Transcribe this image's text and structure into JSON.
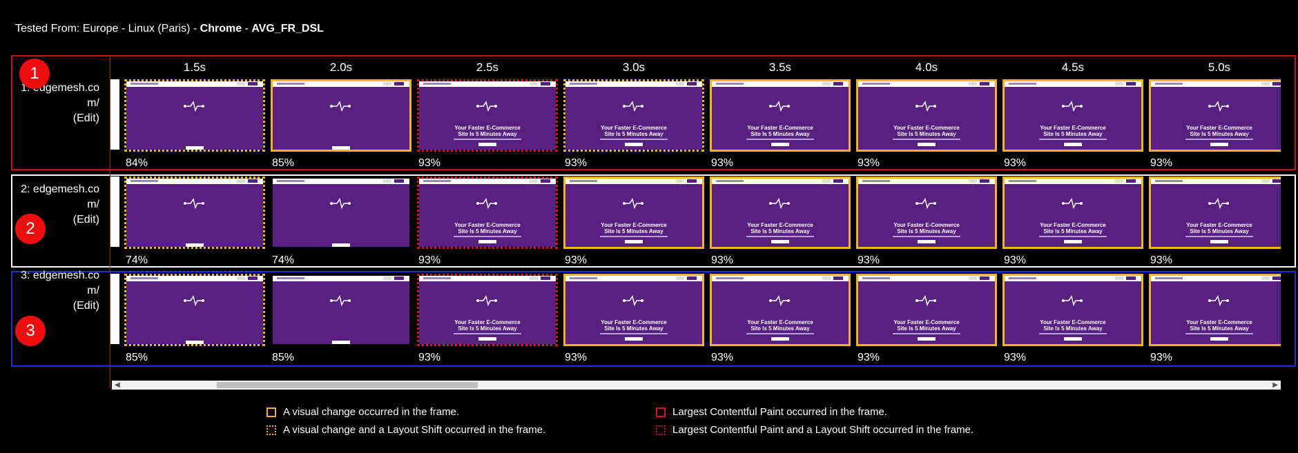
{
  "header": {
    "prefix": "Tested From: Europe - Linux (Paris) - ",
    "browser": "Chrome",
    "separator": " - ",
    "connection": "AVG_FR_DSL"
  },
  "timeline": [
    "1.5s",
    "2.0s",
    "2.5s",
    "3.0s",
    "3.5s",
    "4.0s",
    "4.5s",
    "5.0s"
  ],
  "thumbnail_text": {
    "line1": "Your Faster E-Commerce",
    "line2": "Site Is 5 Minutes Away"
  },
  "tests": [
    {
      "badge": "1",
      "label_line1": "1: edgemesh.co",
      "label_line2": "m/",
      "edit": "(Edit)",
      "frames": [
        {
          "percent": "84%",
          "status": "visual-change-layout-shift",
          "headline": false
        },
        {
          "percent": "85%",
          "status": "visual-change",
          "headline": false
        },
        {
          "percent": "93%",
          "status": "lcp-layout-shift",
          "headline": true
        },
        {
          "percent": "93%",
          "status": "visual-change-layout-shift",
          "headline": true
        },
        {
          "percent": "93%",
          "status": "visual-change",
          "headline": true
        },
        {
          "percent": "93%",
          "status": "visual-change",
          "headline": true
        },
        {
          "percent": "93%",
          "status": "visual-change",
          "headline": true
        },
        {
          "percent": "93%",
          "status": "visual-change",
          "headline": true
        }
      ]
    },
    {
      "badge": "2",
      "label_line1": "2: edgemesh.co",
      "label_line2": "m/",
      "edit": "(Edit)",
      "frames": [
        {
          "percent": "74%",
          "status": "visual-change-layout-shift",
          "headline": false
        },
        {
          "percent": "74%",
          "status": "none",
          "headline": false
        },
        {
          "percent": "93%",
          "status": "lcp-layout-shift",
          "headline": true
        },
        {
          "percent": "93%",
          "status": "visual-change",
          "headline": true
        },
        {
          "percent": "93%",
          "status": "visual-change",
          "headline": true
        },
        {
          "percent": "93%",
          "status": "visual-change",
          "headline": true
        },
        {
          "percent": "93%",
          "status": "visual-change",
          "headline": true
        },
        {
          "percent": "93%",
          "status": "visual-change",
          "headline": true
        }
      ]
    },
    {
      "badge": "3",
      "label_line1": "3: edgemesh.co",
      "label_line2": "m/",
      "edit": "(Edit)",
      "frames": [
        {
          "percent": "85%",
          "status": "visual-change-layout-shift",
          "headline": false
        },
        {
          "percent": "85%",
          "status": "none",
          "headline": false
        },
        {
          "percent": "93%",
          "status": "lcp-layout-shift",
          "headline": true
        },
        {
          "percent": "93%",
          "status": "visual-change",
          "headline": true
        },
        {
          "percent": "93%",
          "status": "visual-change",
          "headline": true
        },
        {
          "percent": "93%",
          "status": "visual-change",
          "headline": true
        },
        {
          "percent": "93%",
          "status": "visual-change",
          "headline": true
        },
        {
          "percent": "93%",
          "status": "visual-change",
          "headline": true
        }
      ]
    }
  ],
  "legend": {
    "visual_change": "A visual change occurred in the frame.",
    "visual_change_layout_shift": "A visual change and a Layout Shift occurred in the frame.",
    "lcp": "Largest Contentful Paint occurred in the frame.",
    "lcp_layout_shift": "Largest Contentful Paint and a Layout Shift occurred in the frame."
  },
  "scroll": {
    "left_arrow": "◀",
    "right_arrow": "▶"
  },
  "colors": {
    "visual_change": "#f2b51d",
    "lcp": "#e21010",
    "test1_border": "#cf1111",
    "test2_border": "#ffffff",
    "test3_border": "#1733d6",
    "badge": "#ef0d0d",
    "thumbnail_bg": "#5a1f83"
  }
}
